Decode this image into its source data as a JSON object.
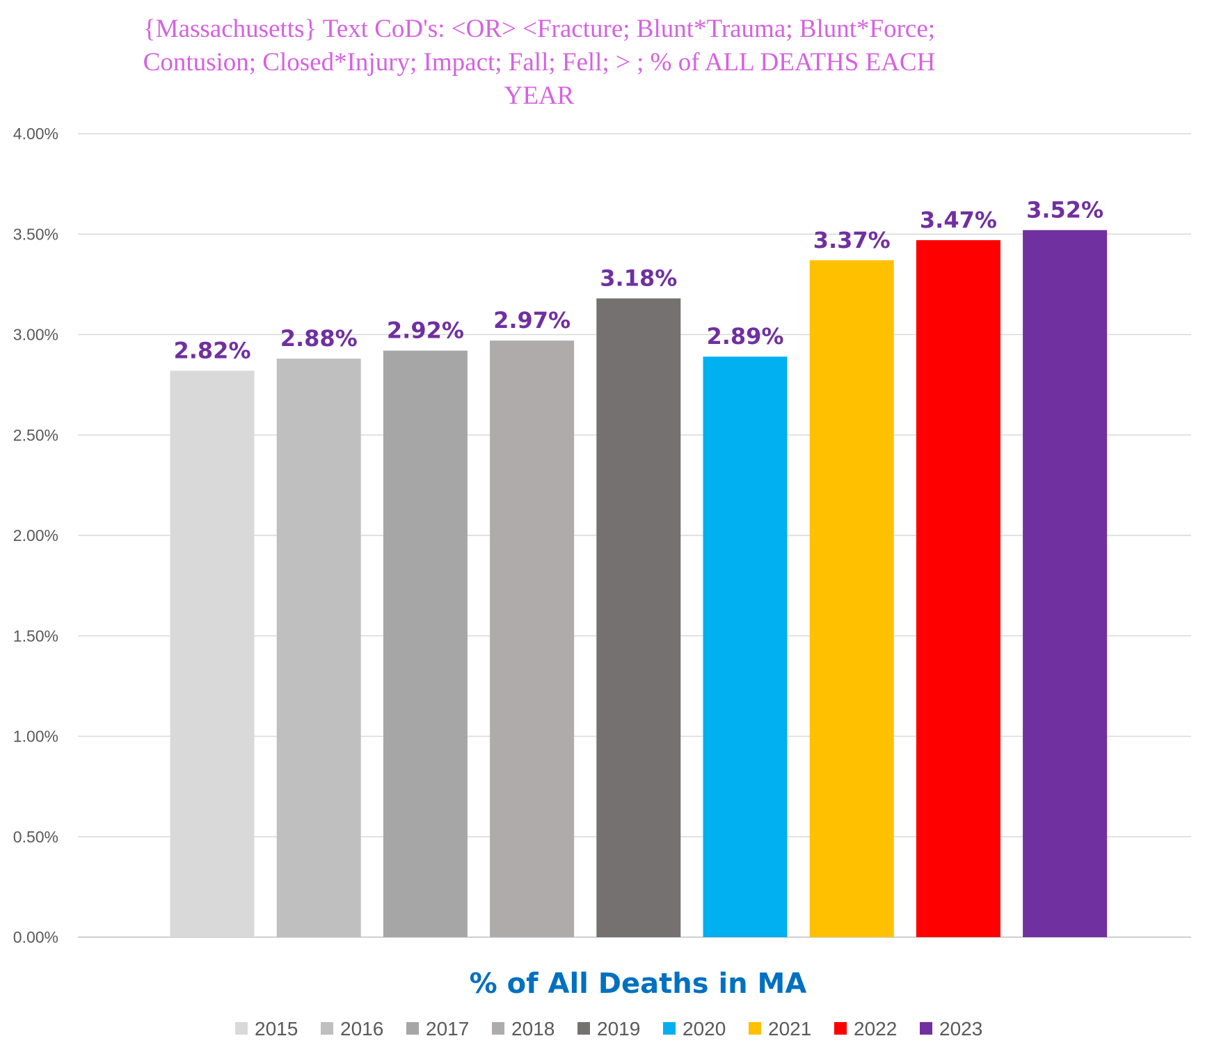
{
  "chart_data": {
    "type": "bar",
    "title": "{Massachusetts}   Text CoD's: <OR> <Fracture; Blunt*Trauma; Blunt*Force; Contusion; Closed*Injury; Impact; Fall; Fell; > ; % of ALL DEATHS EACH YEAR",
    "xlabel": "% of All Deaths in MA",
    "ylabel": "",
    "ylim": [
      0,
      4.0
    ],
    "yticks": [
      0,
      0.5,
      1.0,
      1.5,
      2.0,
      2.5,
      3.0,
      3.5,
      4.0
    ],
    "ytick_labels": [
      "0.00%",
      "0.50%",
      "1.00%",
      "1.50%",
      "2.00%",
      "2.50%",
      "3.00%",
      "3.50%",
      "4.00%"
    ],
    "grid": true,
    "legend_position": "bottom",
    "series": [
      {
        "name": "2015",
        "value": 2.82,
        "label": "2.82%",
        "color": "#d9d9d9"
      },
      {
        "name": "2016",
        "value": 2.88,
        "label": "2.88%",
        "color": "#bfbfbf"
      },
      {
        "name": "2017",
        "value": 2.92,
        "label": "2.92%",
        "color": "#a6a6a6"
      },
      {
        "name": "2018",
        "value": 2.97,
        "label": "2.97%",
        "color": "#afabab"
      },
      {
        "name": "2019",
        "value": 3.18,
        "label": "3.18%",
        "color": "#767171"
      },
      {
        "name": "2020",
        "value": 2.89,
        "label": "2.89%",
        "color": "#00b0f0"
      },
      {
        "name": "2021",
        "value": 3.37,
        "label": "3.37%",
        "color": "#ffc000"
      },
      {
        "name": "2022",
        "value": 3.47,
        "label": "3.47%",
        "color": "#ff0000"
      },
      {
        "name": "2023",
        "value": 3.52,
        "label": "3.52%",
        "color": "#7030a0"
      }
    ]
  }
}
